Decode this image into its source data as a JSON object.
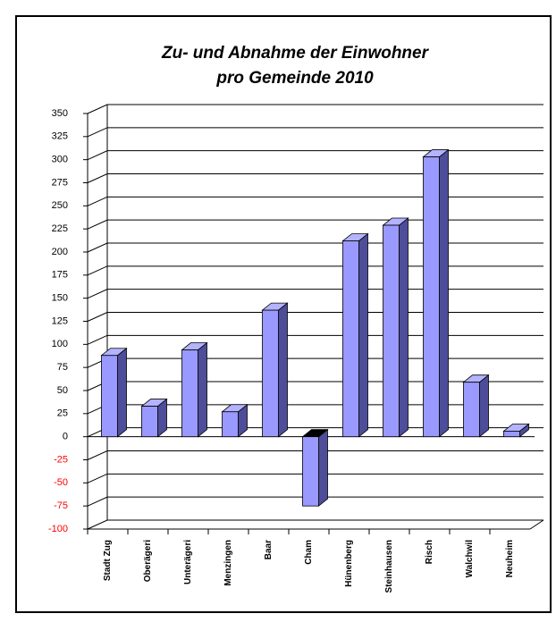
{
  "chart_data": {
    "type": "bar3d",
    "title": [
      "Zu- und Abnahme der Einwohner",
      "pro Gemeinde 2010"
    ],
    "categories": [
      "Stadt Zug",
      "Oberägeri",
      "Unterägeri",
      "Menzingen",
      "Baar",
      "Cham",
      "Hünenberg",
      "Steinhausen",
      "Risch",
      "Walchwil",
      "Neuheim"
    ],
    "values": [
      88,
      33,
      94,
      27,
      137,
      -75,
      212,
      229,
      303,
      59,
      6
    ],
    "color": "#9999ff",
    "ylim": [
      -100,
      350
    ],
    "yticks": [
      -100,
      -75,
      -50,
      -25,
      0,
      25,
      50,
      75,
      100,
      125,
      150,
      175,
      200,
      225,
      250,
      275,
      300,
      325,
      350
    ],
    "negative_tick_color": "#ff0000",
    "grid": true
  }
}
